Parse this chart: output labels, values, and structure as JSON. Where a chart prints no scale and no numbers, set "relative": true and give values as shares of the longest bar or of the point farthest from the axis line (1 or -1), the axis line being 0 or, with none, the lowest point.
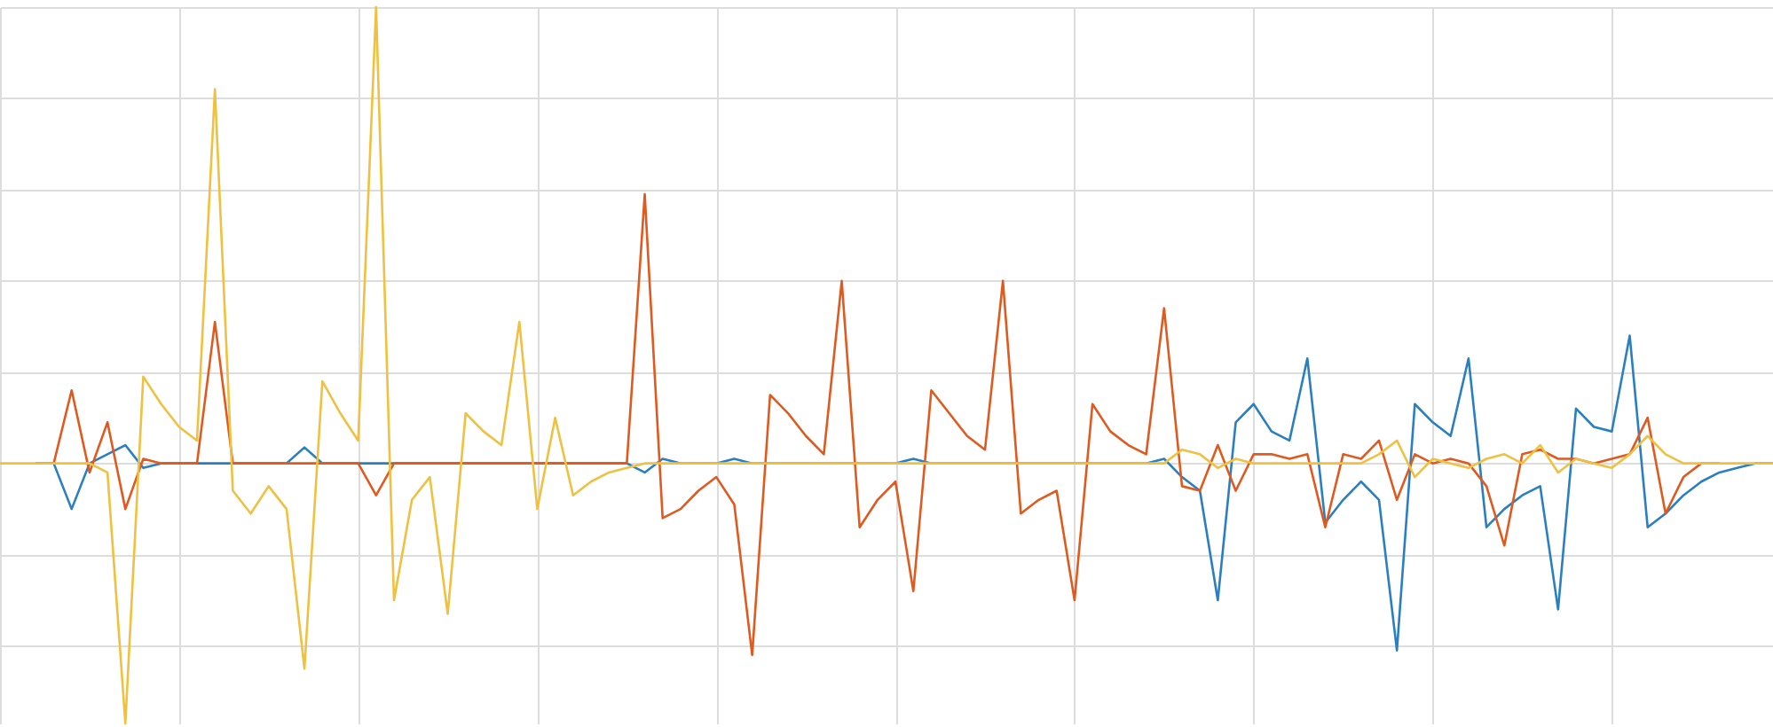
{
  "chart_data": {
    "type": "line",
    "relative": true,
    "grid": true,
    "categories": [
      null,
      null,
      null,
      null,
      null,
      null,
      null,
      null,
      null,
      null,
      null,
      null,
      null,
      null,
      null,
      null,
      null,
      null,
      null,
      null,
      null,
      null,
      null,
      null,
      null,
      null,
      null,
      null,
      null,
      null,
      null,
      null,
      null,
      null,
      null,
      null,
      null,
      null,
      null,
      null,
      null,
      null,
      null,
      null,
      null,
      null,
      null,
      null,
      null,
      null,
      null,
      null,
      null,
      null,
      null,
      null,
      null,
      null,
      null,
      null,
      null,
      null,
      null,
      null,
      null,
      null,
      null,
      null,
      null,
      null,
      null,
      null,
      null,
      null,
      null,
      null,
      null,
      null,
      null,
      null,
      null,
      null,
      null,
      null,
      null,
      null,
      null,
      null,
      null,
      null,
      null,
      null,
      null,
      null,
      null,
      null,
      null,
      null,
      null,
      null
    ],
    "series": [
      {
        "color": "#2a7fc1",
        "values": [
          null,
          null,
          0,
          0,
          -0.1,
          0,
          0.02,
          0.04,
          -0.01,
          0,
          0,
          0,
          0,
          0,
          0,
          0,
          0,
          0.035,
          0,
          0,
          0,
          0,
          0,
          0,
          0,
          0,
          0,
          0,
          0,
          0,
          0,
          0,
          0,
          0,
          0,
          0,
          -0.02,
          0.01,
          0,
          0,
          0,
          0.01,
          0,
          0,
          0,
          0,
          0,
          0,
          0,
          0,
          0,
          0.01,
          0,
          0,
          0,
          0,
          0,
          0,
          0,
          0,
          0,
          0,
          0,
          0,
          0,
          0.01,
          -0.03,
          -0.06,
          -0.3,
          0.09,
          0.13,
          0.07,
          0.05,
          0.23,
          -0.13,
          -0.08,
          -0.04,
          -0.08,
          -0.41,
          0.13,
          0.09,
          0.06,
          0.23,
          -0.14,
          -0.1,
          -0.07,
          -0.05,
          -0.32,
          0.12,
          0.08,
          0.07,
          0.28,
          -0.14,
          -0.11,
          -0.07,
          -0.04,
          -0.02,
          -0.01,
          0,
          0
        ]
      },
      {
        "color": "#e05a1f",
        "values": [
          null,
          null,
          0,
          0,
          0.16,
          -0.02,
          0.09,
          -0.1,
          0.01,
          0,
          0,
          0,
          0.31,
          0,
          0,
          0,
          0,
          0,
          0,
          0,
          0,
          -0.07,
          0,
          0,
          0,
          0,
          0,
          0,
          0,
          0,
          0,
          0,
          0,
          0,
          0,
          0,
          0.59,
          -0.12,
          -0.1,
          -0.06,
          -0.03,
          -0.09,
          -0.42,
          0.15,
          0.11,
          0.06,
          0.02,
          0.4,
          -0.14,
          -0.08,
          -0.04,
          -0.28,
          0.16,
          0.11,
          0.06,
          0.03,
          0.4,
          -0.11,
          -0.08,
          -0.06,
          -0.3,
          0.13,
          0.07,
          0.04,
          0.02,
          0.34,
          -0.05,
          -0.06,
          0.04,
          -0.06,
          0.02,
          0.02,
          0.01,
          0.02,
          -0.14,
          0.02,
          0.01,
          0.05,
          -0.08,
          0.02,
          0,
          0.01,
          0,
          -0.05,
          -0.18,
          0.02,
          0.03,
          0.01,
          0.01,
          0,
          0.01,
          0.02,
          0.1,
          -0.11,
          -0.03,
          0,
          0,
          null,
          null,
          null
        ]
      },
      {
        "color": "#f0c040",
        "values": [
          0,
          0,
          0,
          0,
          0,
          0,
          -0.02,
          -0.57,
          0.19,
          0.13,
          0.08,
          0.05,
          0.82,
          -0.06,
          -0.11,
          -0.05,
          -0.1,
          -0.45,
          0.18,
          0.11,
          0.05,
          1,
          -0.3,
          -0.08,
          -0.03,
          -0.33,
          0.11,
          0.07,
          0.04,
          0.31,
          -0.1,
          0.1,
          -0.07,
          -0.04,
          -0.02,
          -0.01,
          0,
          0,
          0,
          0,
          0,
          0,
          0,
          0,
          0,
          0,
          0,
          0,
          0,
          0,
          0,
          0,
          0,
          0,
          0,
          0,
          0,
          0,
          0,
          0,
          0,
          0,
          0,
          0,
          0,
          0,
          0.03,
          0.02,
          -0.01,
          0.01,
          0,
          0,
          0,
          0,
          0,
          0,
          0,
          0.02,
          0.05,
          -0.03,
          0.01,
          0,
          -0.01,
          0.01,
          0.02,
          0,
          0.04,
          -0.02,
          0.01,
          0,
          -0.01,
          0.02,
          0.06,
          0.02,
          0,
          0,
          0,
          0,
          0,
          0
        ]
      }
    ]
  }
}
